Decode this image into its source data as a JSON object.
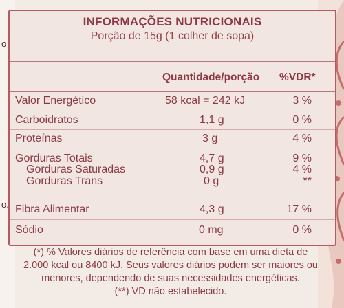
{
  "left_fragments": [
    "o",
    "o."
  ],
  "header": {
    "title": "INFORMAÇÕES NUTRICIONAIS",
    "serving": "Porção de 15g (1 colher de sopa)"
  },
  "columns": {
    "quantity": "Quantidade/porção",
    "vdr": "%VDR*"
  },
  "rows": [
    {
      "label": "Valor Energético",
      "value": "58 kcal = 242 kJ",
      "vdr": "3 %"
    },
    {
      "label": "Carboidratos",
      "value": "1,1 g",
      "vdr": "0 %"
    },
    {
      "label": "Proteínas",
      "value": "3 g",
      "vdr": "4 %"
    },
    {
      "label": "Gorduras Totais",
      "value": "4,7 g",
      "vdr": "9 %"
    },
    {
      "label": "Gorduras Saturadas",
      "value": "0,9 g",
      "vdr": "4 %"
    },
    {
      "label": "Gorduras Trans",
      "value": "0 g",
      "vdr": "**"
    },
    {
      "label": "Fibra Alimentar",
      "value": "4,3 g",
      "vdr": "17 %"
    },
    {
      "label": "Sódio",
      "value": "0 mg",
      "vdr": "0 %"
    }
  ],
  "footnote": {
    "line1": "(*) % Valores diários de referência com base em uma dieta de",
    "line2": "2.000 kcal ou 8400 kJ. Seus valores diários podem ser maiores ou",
    "line3": "menores, dependendo de suas necessidades energéticas.",
    "line4": "(**) VD não estabelecido."
  },
  "colors": {
    "text": "#8a3a45",
    "border": "#b65a62",
    "background": "#efe3dd"
  }
}
